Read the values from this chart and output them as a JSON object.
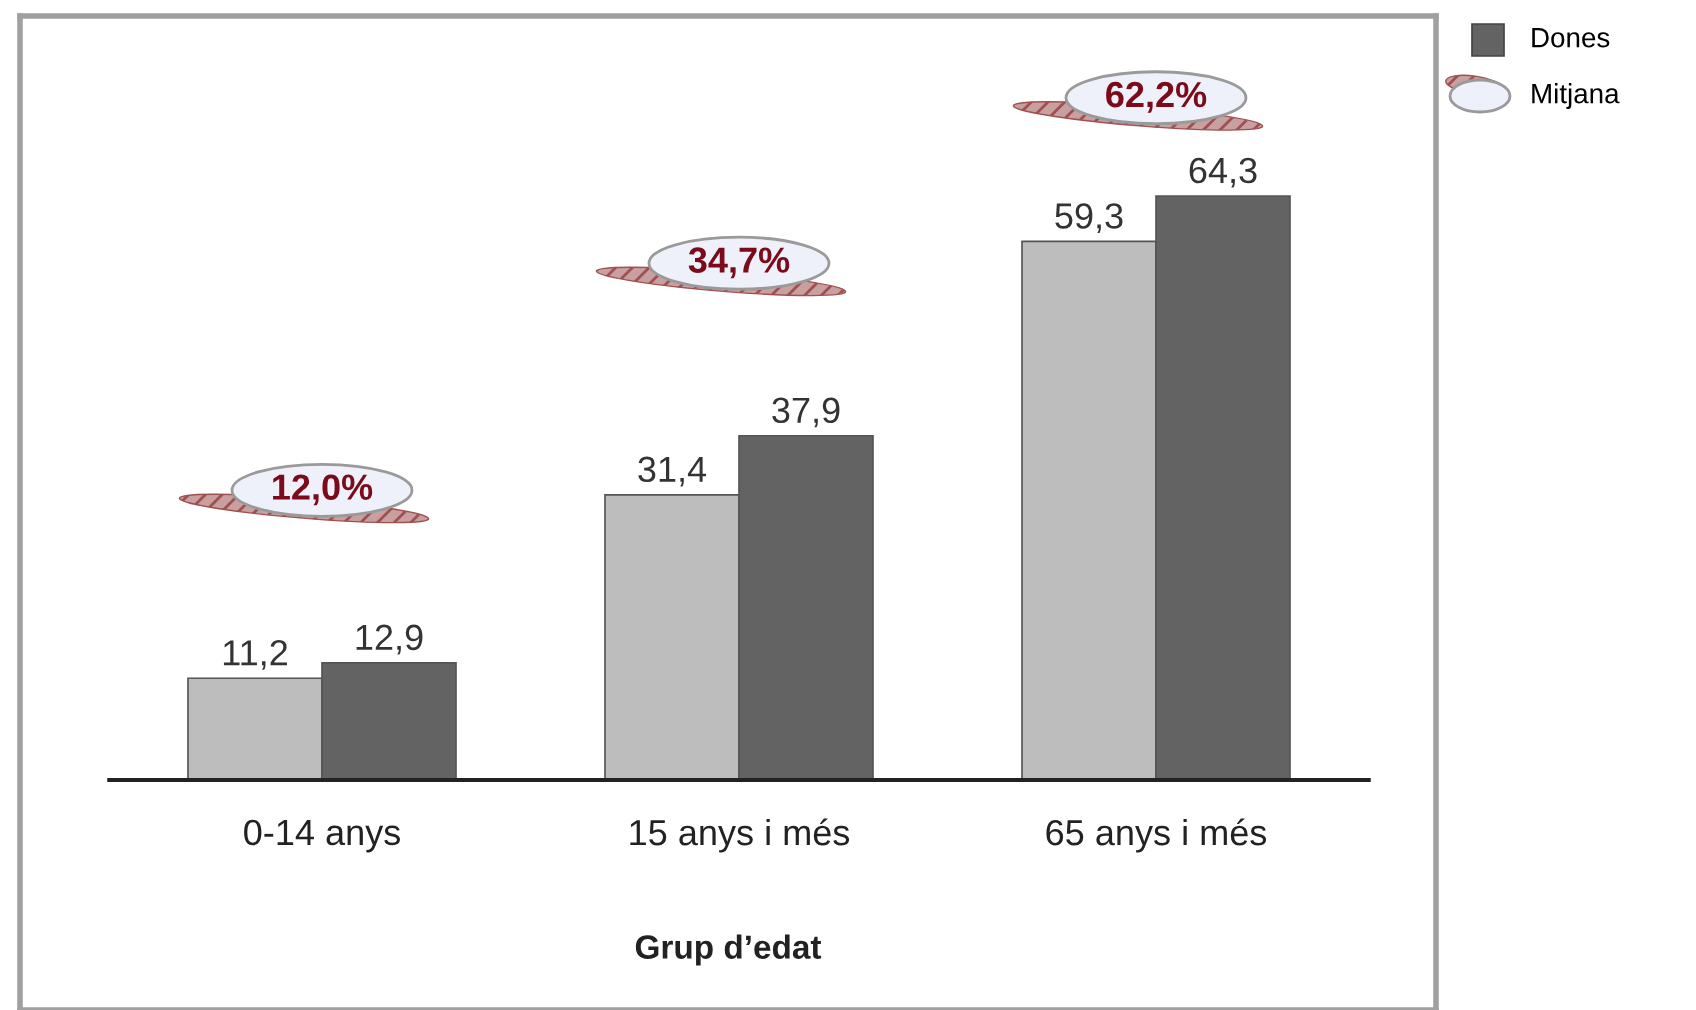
{
  "chart_data": {
    "type": "bar",
    "xlabel": "Grup d’edat",
    "categories": [
      "0-14 anys",
      "15 anys i més",
      "65 anys i més"
    ],
    "series": [
      {
        "color": "#bdbdbd",
        "values": [
          11.2,
          31.4,
          59.3
        ],
        "value_labels": [
          "11,2",
          "31,4",
          "59,3"
        ]
      },
      {
        "name": "Dones",
        "color": "#636363",
        "values": [
          12.9,
          37.9,
          64.3
        ],
        "value_labels": [
          "12,9",
          "37,9",
          "64,3"
        ]
      }
    ],
    "legend": "top right",
    "annotations": [
      "12,0%",
      "34,7%",
      "62,2%",
      "Mitjana"
    ]
  }
}
